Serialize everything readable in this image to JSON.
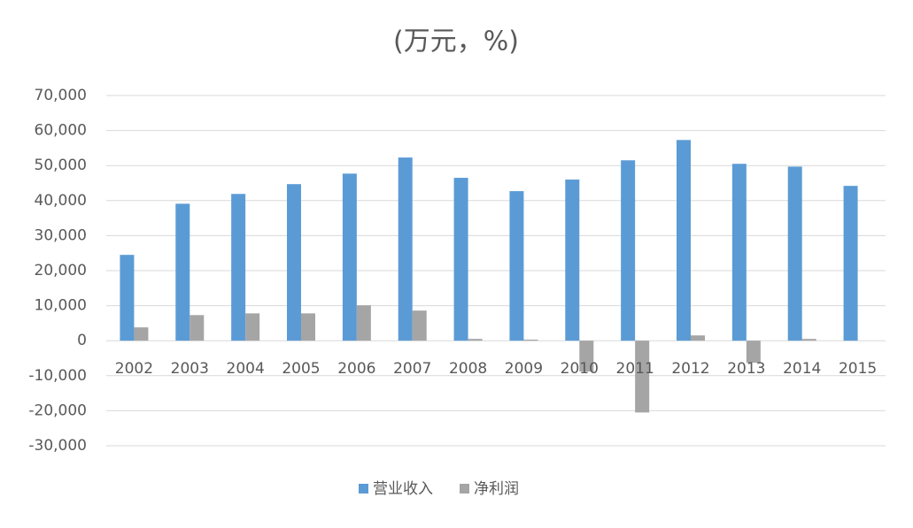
{
  "chart_data": {
    "type": "bar",
    "title": "(万元，%)",
    "categories": [
      "2002",
      "2003",
      "2004",
      "2005",
      "2006",
      "2007",
      "2008",
      "2009",
      "2010",
      "2011",
      "2012",
      "2013",
      "2014",
      "2015"
    ],
    "series": [
      {
        "name": "营业收入",
        "color": "#5b9bd5",
        "values": [
          24500,
          39100,
          41900,
          44700,
          47700,
          52300,
          46500,
          42700,
          46000,
          51500,
          57300,
          50500,
          49700,
          44200
        ]
      },
      {
        "name": "净利润",
        "color": "#a5a5a5",
        "values": [
          3800,
          7300,
          7800,
          7800,
          10100,
          8600,
          500,
          300,
          -8800,
          -20500,
          1500,
          -6300,
          500,
          0
        ]
      }
    ],
    "ylim": [
      -30000,
      70000
    ],
    "yticks": [
      {
        "value": -30000,
        "label": "-30,000"
      },
      {
        "value": -20000,
        "label": "-20,000"
      },
      {
        "value": -10000,
        "label": "-10,000"
      },
      0,
      {
        "value": 10000,
        "label": "10,000"
      },
      {
        "value": 20000,
        "label": "20,000"
      },
      {
        "value": 30000,
        "label": "30,000"
      },
      {
        "value": 40000,
        "label": "40,000"
      },
      {
        "value": 50000,
        "label": "50,000"
      },
      {
        "value": 60000,
        "label": "60,000"
      },
      {
        "value": 70000,
        "label": "70,000"
      }
    ],
    "grid": true,
    "legend": "bottom"
  }
}
